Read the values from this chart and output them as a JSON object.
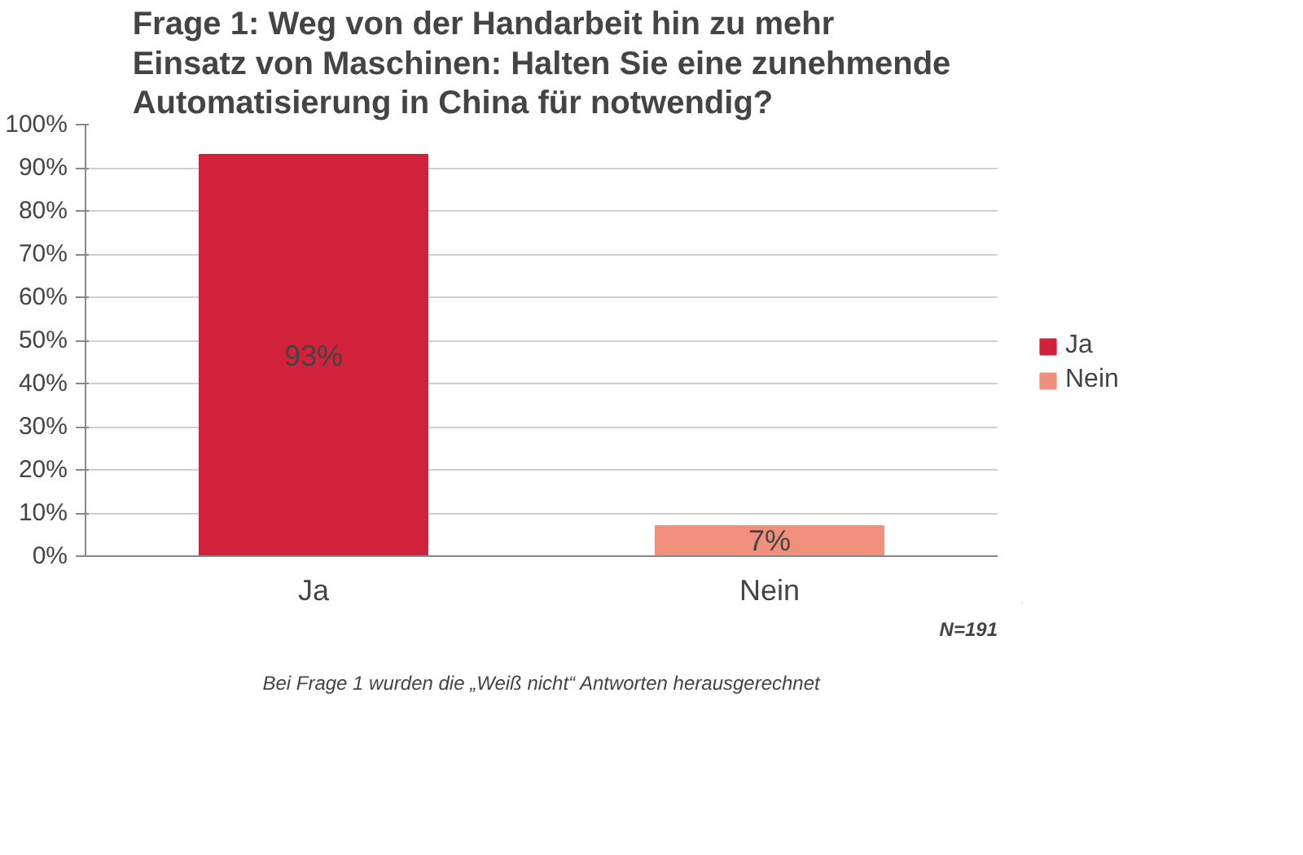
{
  "chart_data": {
    "type": "bar",
    "title": "Frage 1: Weg von der Handarbeit hin zu mehr\nEinsatz von Maschinen: Halten Sie eine zunehmende\nAutomatisierung in China für notwendig?",
    "categories": [
      "Ja",
      "Nein"
    ],
    "series": [
      {
        "name": "Ja",
        "color": "#d2213a",
        "values": [
          93,
          null
        ],
        "value_labels": [
          "93%",
          null
        ]
      },
      {
        "name": "Nein",
        "color": "#f0907c",
        "values": [
          null,
          7
        ],
        "value_labels": [
          null,
          "7%"
        ]
      }
    ],
    "ylim": [
      0,
      100
    ],
    "yticks": [
      {
        "value": 0,
        "label": "0%"
      },
      {
        "value": 10,
        "label": "10%"
      },
      {
        "value": 20,
        "label": "20%"
      },
      {
        "value": 30,
        "label": "30%"
      },
      {
        "value": 40,
        "label": "40%"
      },
      {
        "value": 50,
        "label": "50%"
      },
      {
        "value": 60,
        "label": "60%"
      },
      {
        "value": 70,
        "label": "70%"
      },
      {
        "value": 80,
        "label": "80%"
      },
      {
        "value": 90,
        "label": "90%"
      },
      {
        "value": 100,
        "label": "100%"
      }
    ],
    "grid": "y",
    "legend": "right",
    "annotations": [
      "N=191",
      "Bei Frage 1 wurden die „Weiß nicht“ Antworten herausgerechnet"
    ]
  }
}
